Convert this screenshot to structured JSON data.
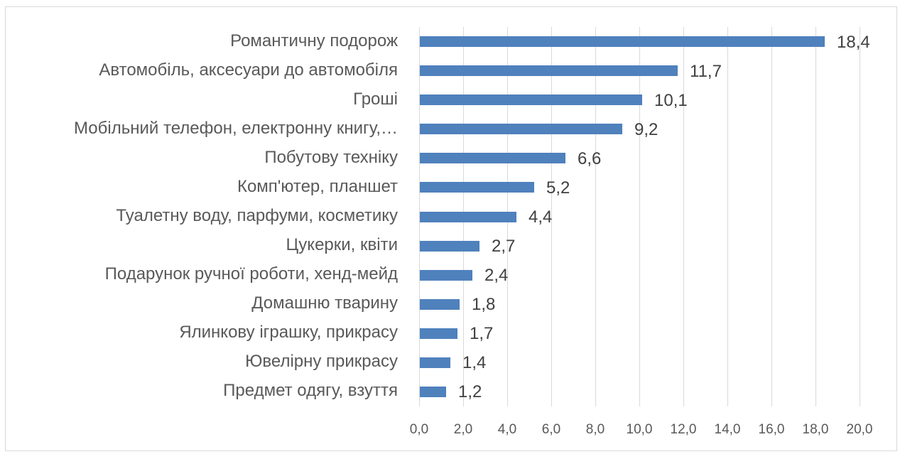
{
  "chart_data": {
    "type": "bar",
    "orientation": "horizontal",
    "title": "",
    "xlabel": "",
    "ylabel": "",
    "xlim": [
      0,
      20
    ],
    "grid": true,
    "legend": false,
    "bar_color": "#4f81bd",
    "categories": [
      "Романтичну подорож",
      "Автомобіль, аксесуари до автомобіля",
      "Гроші",
      "Мобільний телефон, електронну книгу,…",
      "Побутову техніку",
      "Комп'ютер, планшет",
      "Туалетну воду, парфуми, косметику",
      "Цукерки, квіти",
      "Подарунок ручної роботи, хенд-мейд",
      "Домашню тварину",
      "Ялинкову іграшку, прикрасу",
      "Ювелірну прикрасу",
      "Предмет одягу, взуття"
    ],
    "values": [
      18.4,
      11.7,
      10.1,
      9.2,
      6.6,
      5.2,
      4.4,
      2.7,
      2.4,
      1.8,
      1.7,
      1.4,
      1.2
    ],
    "value_labels": [
      "18,4",
      "11,7",
      "10,1",
      "9,2",
      "6,6",
      "5,2",
      "4,4",
      "2,7",
      "2,4",
      "1,8",
      "1,7",
      "1,4",
      "1,2"
    ],
    "x_ticks": [
      0,
      2,
      4,
      6,
      8,
      10,
      12,
      14,
      16,
      18,
      20
    ],
    "x_tick_labels": [
      "0,0",
      "2,0",
      "4,0",
      "6,0",
      "8,0",
      "10,0",
      "12,0",
      "14,0",
      "16,0",
      "18,0",
      "20,0"
    ]
  }
}
